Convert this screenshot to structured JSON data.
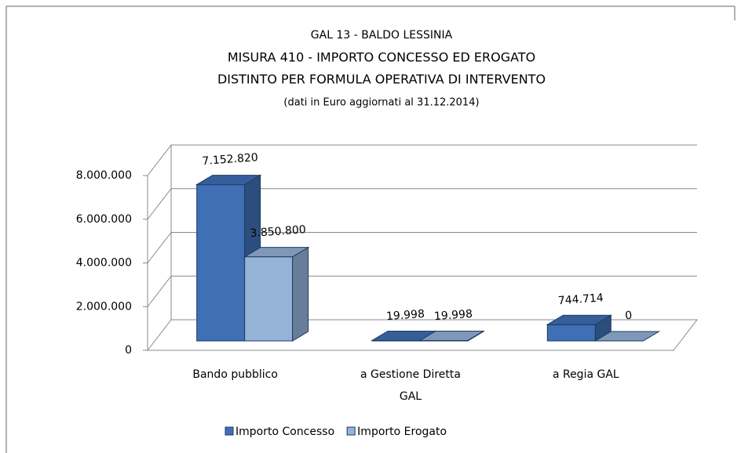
{
  "chart_data": {
    "type": "bar3d",
    "title_lines": [
      "GAL 13 - BALDO LESSINIA",
      "MISURA 410 - IMPORTO CONCESSO ED EROGATO",
      "DISTINTO PER FORMULA OPERATIVA DI INTERVENTO"
    ],
    "subtitle": "(dati in Euro aggiornati al 31.12.2014)",
    "categories": [
      "Bando pubblico",
      "a Gestione Diretta GAL",
      "a Regia GAL"
    ],
    "series": [
      {
        "name": "Importo Concesso",
        "color": "#3f6fb5",
        "values": [
          7152820,
          19998,
          744714
        ],
        "value_labels": [
          "7.152.820",
          "19.998",
          "744.714"
        ]
      },
      {
        "name": "Importo Erogato",
        "color": "#95b3d7",
        "values": [
          3850800,
          19998,
          0
        ],
        "value_labels": [
          "3.850.800",
          "19.998",
          "0"
        ]
      }
    ],
    "ylim": [
      0,
      8000000
    ],
    "yticks": [
      0,
      {
        "value": 2000000,
        "label": "2.000.000"
      },
      {
        "value": 4000000,
        "label": "4.000.000"
      },
      {
        "value": 6000000,
        "label": "6.000.000"
      },
      {
        "value": 8000000,
        "label": "8.000.000"
      }
    ],
    "grid": true,
    "legend": "bottom"
  }
}
